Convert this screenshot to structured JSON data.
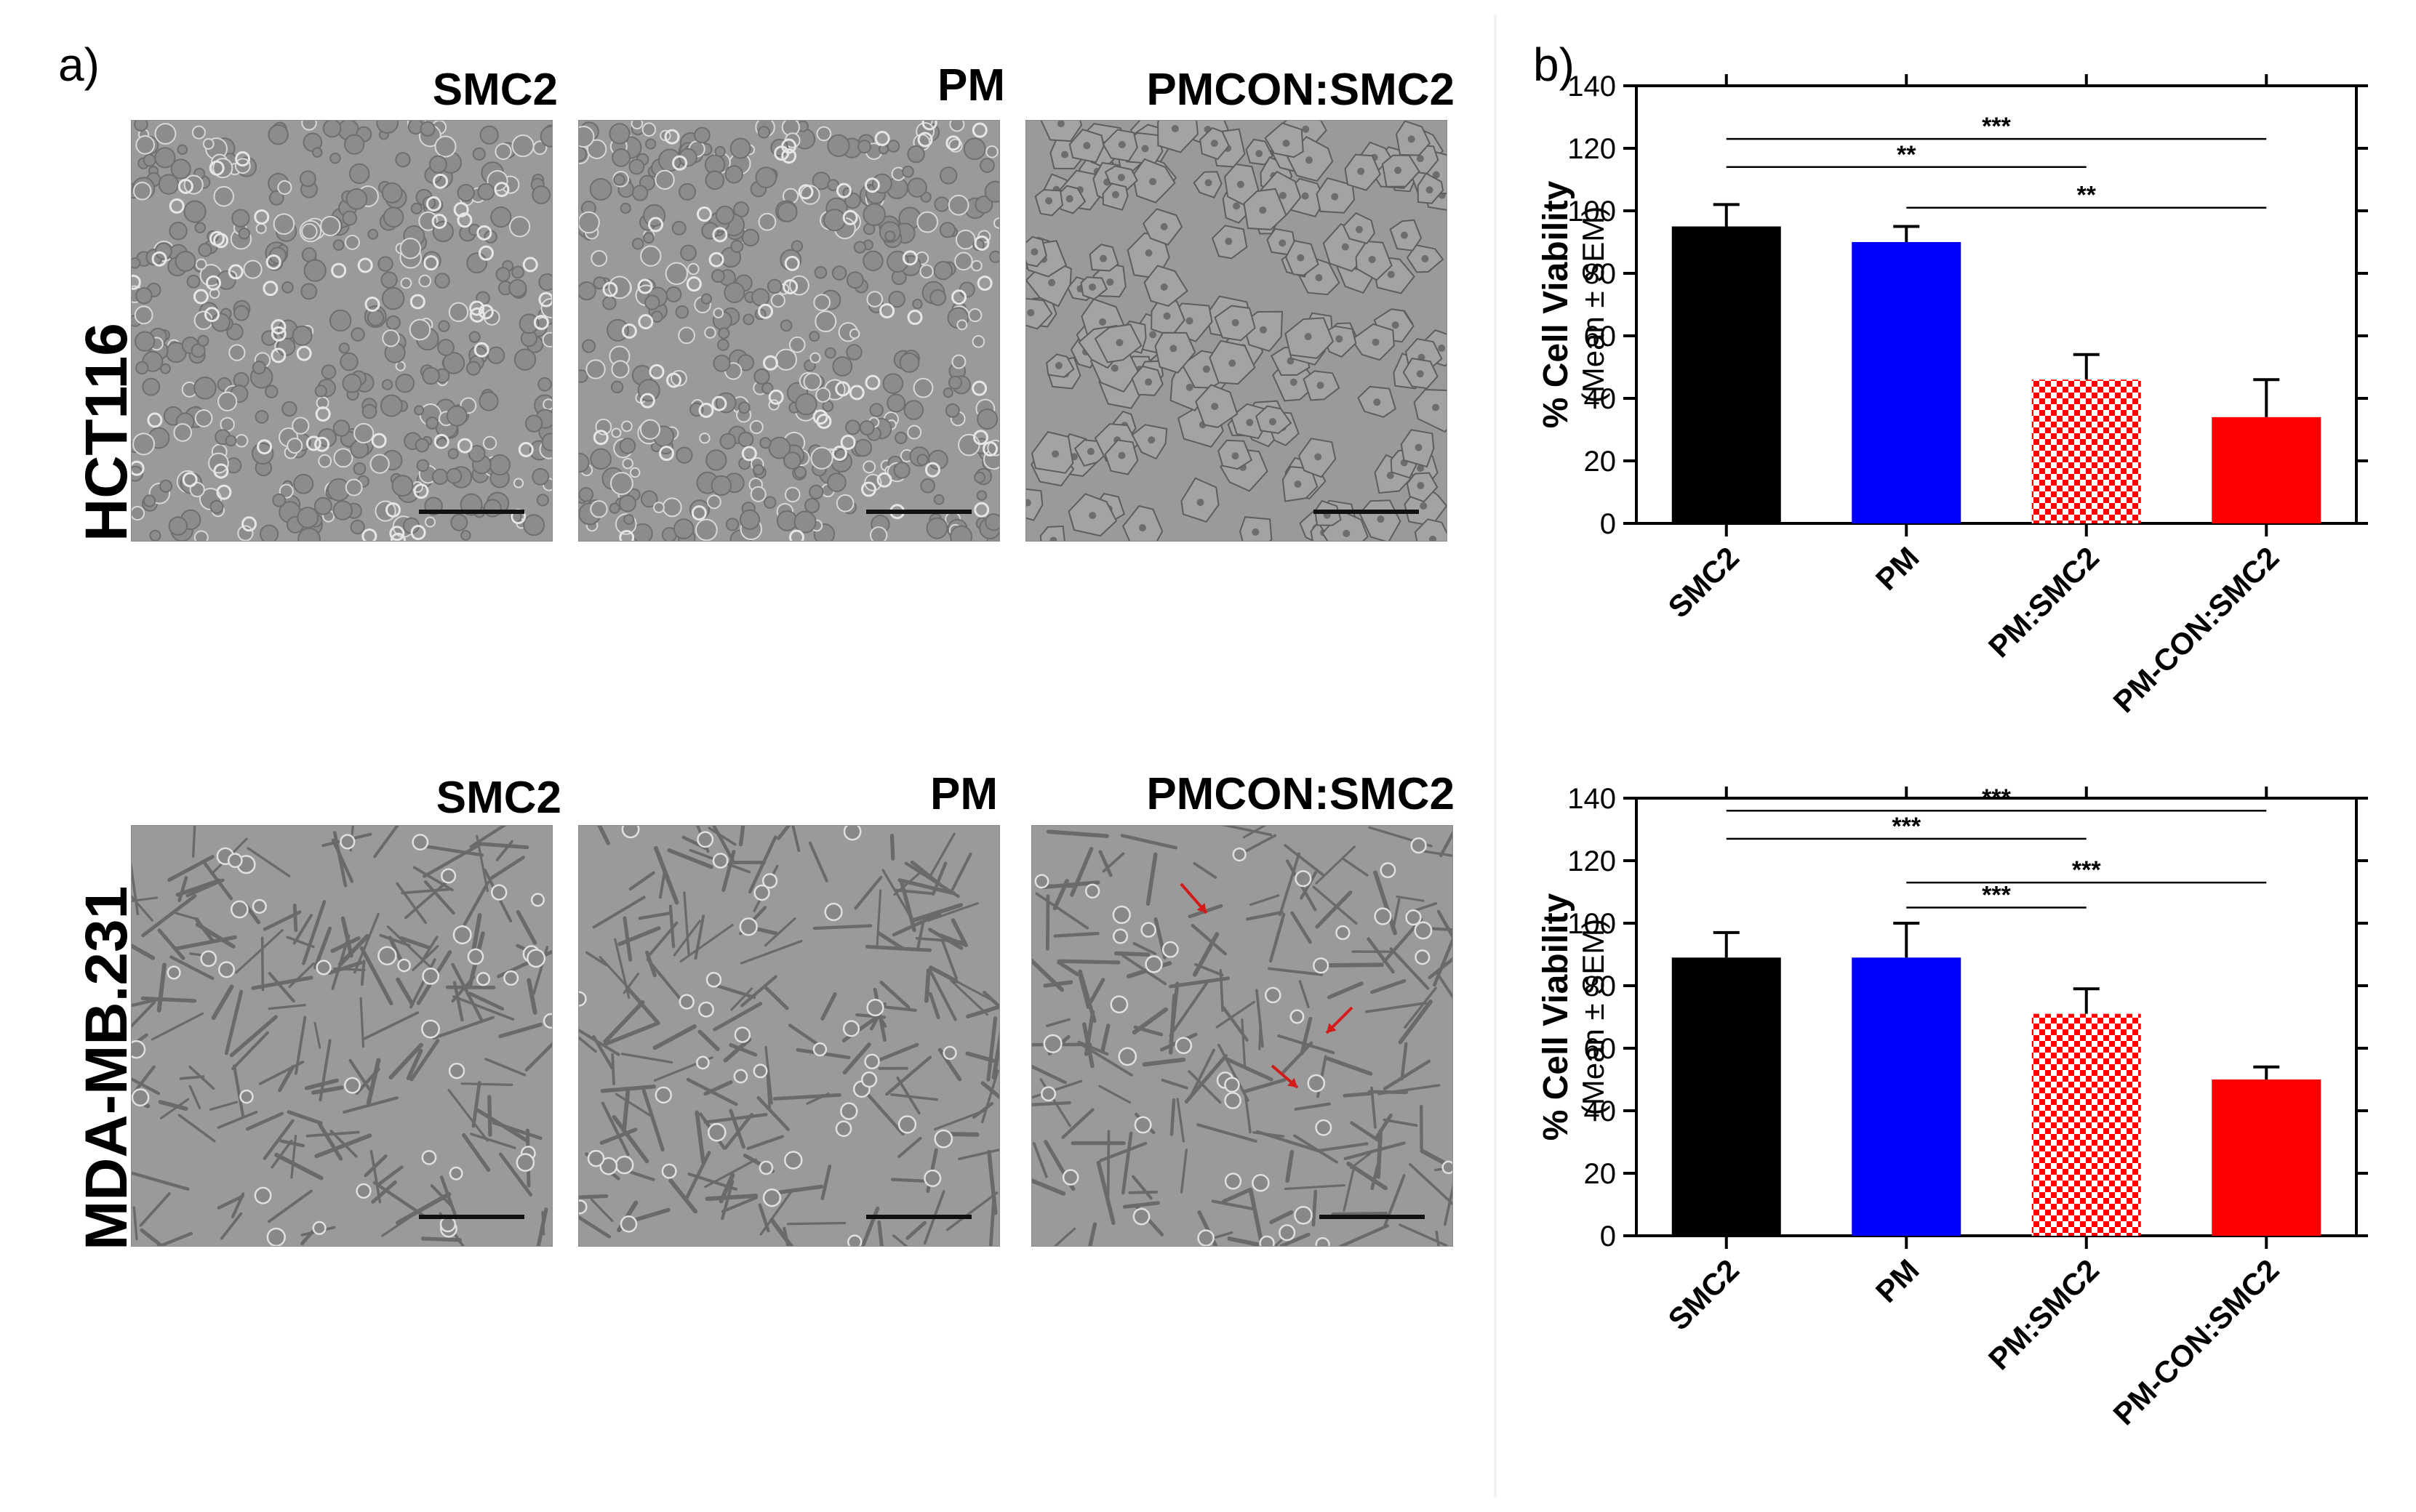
{
  "panel_a": {
    "letter": "a)",
    "rows": [
      {
        "row_label": "HCT116",
        "images": [
          {
            "label": "SMC2",
            "style": "dense-round"
          },
          {
            "label": "PM",
            "style": "dense-round"
          },
          {
            "label": "PMCON:SMC2",
            "style": "polygonal"
          }
        ]
      },
      {
        "row_label": "MDA-MB.231",
        "images": [
          {
            "label": "SMC2",
            "style": "spindle"
          },
          {
            "label": "PM",
            "style": "spindle"
          },
          {
            "label": "PMCON:SMC2",
            "style": "spindle-arrows"
          }
        ]
      }
    ]
  },
  "panel_b": {
    "letter": "b)"
  },
  "chart_data": [
    {
      "type": "bar",
      "categories": [
        "SMC2",
        "PM",
        "PM:SMC2",
        "PM-CON:SMC2"
      ],
      "values": [
        95,
        90,
        46,
        34
      ],
      "errors": [
        7,
        5,
        8,
        12
      ],
      "bar_colors": [
        "#000000",
        "#0000ff",
        "#ff0000",
        "#ff0000"
      ],
      "bar_patterns": [
        "solid",
        "solid",
        "checker",
        "solid"
      ],
      "ylabel": "% Cell Viability",
      "ylabel_sub": "(Mean ± SEM)",
      "ylim": [
        0,
        140
      ],
      "yticks": [
        0,
        20,
        40,
        60,
        80,
        100,
        120,
        140
      ],
      "significance": [
        {
          "from": 0,
          "to": 3,
          "label": "***",
          "y": 123
        },
        {
          "from": 0,
          "to": 2,
          "label": "**",
          "y": 114
        },
        {
          "from": 1,
          "to": 3,
          "label": "**",
          "y": 101
        }
      ]
    },
    {
      "type": "bar",
      "categories": [
        "SMC2",
        "PM",
        "PM:SMC2",
        "PM-CON:SMC2"
      ],
      "values": [
        89,
        89,
        71,
        50
      ],
      "errors": [
        8,
        11,
        8,
        4
      ],
      "bar_colors": [
        "#000000",
        "#0000ff",
        "#ff0000",
        "#ff0000"
      ],
      "bar_patterns": [
        "solid",
        "solid",
        "checker",
        "solid"
      ],
      "ylabel": "% Cell Viability",
      "ylabel_sub": "(Mean ± SEM)",
      "ylim": [
        0,
        140
      ],
      "yticks": [
        0,
        20,
        40,
        60,
        80,
        100,
        120,
        140
      ],
      "significance": [
        {
          "from": 0,
          "to": 3,
          "label": "***",
          "y": 136
        },
        {
          "from": 0,
          "to": 2,
          "label": "***",
          "y": 127
        },
        {
          "from": 1,
          "to": 3,
          "label": "***",
          "y": 113
        },
        {
          "from": 1,
          "to": 2,
          "label": "***",
          "y": 105
        }
      ]
    }
  ]
}
